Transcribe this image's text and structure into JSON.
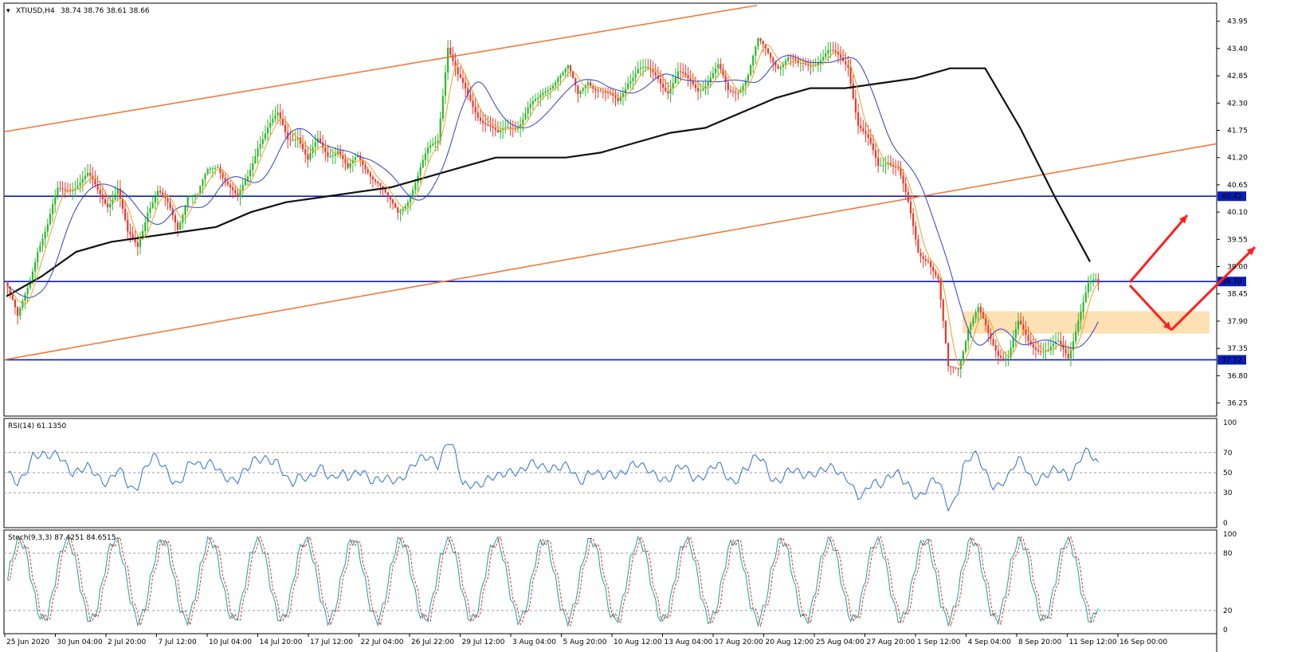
{
  "header": {
    "symbol": "XTIUSD,H4",
    "ohlc": "38.74 38.76 38.61 38.66"
  },
  "price_panel": {
    "ticks": [
      "43.95",
      "43.40",
      "42.85",
      "42.30",
      "41.75",
      "41.20",
      "40.65",
      "40.10",
      "39.55",
      "39.00",
      "38.45",
      "37.90",
      "37.35",
      "36.80",
      "36.25"
    ],
    "levels": [
      {
        "label": "40.42",
        "value": 40.42
      },
      {
        "label": "38.70",
        "value": 38.7
      },
      {
        "label": "37.12",
        "value": 37.12
      }
    ],
    "zone": {
      "from": 37.65,
      "to": 38.1
    },
    "colors": {
      "up": "#2db82d",
      "down": "#e8392e",
      "channel": "#f07a3c",
      "level": "#0a1fb8",
      "ma_long": "#111111",
      "ma_fast": "#2f3fc8",
      "ma_faster": "#f0a020",
      "arrow": "#ff2020",
      "zone": "#fde0b4"
    }
  },
  "rsi_panel": {
    "label": "RSI(14) 61.1350",
    "ticks": [
      "100",
      "70",
      "50",
      "30",
      "0"
    ],
    "color": "#2f6fd0"
  },
  "stoch_panel": {
    "label": "Stoch(9,3,3) 87.4251 84.6515",
    "ticks": [
      "100",
      "80",
      "20",
      "0"
    ],
    "main_color": "#1aa0a0",
    "signal_color": "#e03030"
  },
  "x_axis": {
    "labels": [
      "25 Jun 2020",
      "30 Jun 04:00",
      "2 Jul 20:00",
      "7 Jul 12:00",
      "10 Jul 04:00",
      "14 Jul 20:00",
      "17 Jul 12:00",
      "22 Jul 04:00",
      "26 Jul 22:00",
      "29 Jul 12:00",
      "3 Aug 04:00",
      "5 Aug 20:00",
      "10 Aug 12:00",
      "13 Aug 04:00",
      "17 Aug 20:00",
      "20 Aug 12:00",
      "25 Aug 04:00",
      "27 Aug 20:00",
      "1 Sep 12:00",
      "4 Sep 04:00",
      "8 Sep 20:00",
      "11 Sep 12:00",
      "16 Sep 00:00"
    ]
  },
  "chart_data": {
    "type": "candlestick",
    "symbol": "XTIUSD",
    "timeframe": "H4",
    "last_ohlc": {
      "open": 38.74,
      "high": 38.76,
      "low": 38.61,
      "close": 38.66
    },
    "x_labels": [
      "25 Jun 2020",
      "30 Jun 04:00",
      "2 Jul 20:00",
      "7 Jul 12:00",
      "10 Jul 04:00",
      "14 Jul 20:00",
      "17 Jul 12:00",
      "22 Jul 04:00",
      "26 Jul 22:00",
      "29 Jul 12:00",
      "3 Aug 04:00",
      "5 Aug 20:00",
      "10 Aug 12:00",
      "13 Aug 04:00",
      "17 Aug 20:00",
      "20 Aug 12:00",
      "25 Aug 04:00",
      "27 Aug 20:00",
      "1 Sep 12:00",
      "4 Sep 04:00",
      "8 Sep 20:00",
      "11 Sep 12:00",
      "16 Sep 00:00"
    ],
    "ylim": [
      36.05,
      44.25
    ],
    "close_path": [
      38.6,
      37.9,
      38.6,
      39.4,
      39.8,
      40.5,
      40.6,
      40.7,
      40.8,
      40.5,
      40.3,
      40.6,
      39.6,
      39.4,
      40.2,
      40.5,
      40.2,
      39.8,
      40.5,
      40.4,
      40.9,
      41.1,
      40.7,
      40.3,
      40.8,
      41.5,
      41.8,
      42.0,
      41.6,
      41.7,
      41.1,
      41.5,
      41.3,
      41.4,
      40.9,
      41.2,
      41.0,
      40.7,
      40.3,
      40.1,
      40.4,
      40.8,
      41.3,
      41.6,
      43.5,
      42.8,
      42.4,
      42.1,
      41.9,
      41.6,
      41.8,
      41.9,
      42.2,
      42.3,
      42.6,
      42.9,
      43.0,
      42.4,
      42.8,
      42.6,
      42.4,
      42.3,
      42.8,
      43.0,
      42.9,
      42.8,
      42.6,
      42.9,
      42.7,
      42.6,
      42.8,
      43.0,
      42.5,
      42.6,
      42.9,
      43.5,
      43.3,
      43.1,
      43.2,
      43.0,
      43.1,
      43.2,
      43.3,
      43.2,
      43.1,
      41.9,
      41.5,
      41.0,
      41.2,
      41.0,
      40.2,
      39.3,
      39.2,
      38.7,
      36.9,
      37.0,
      37.8,
      38.1,
      37.6,
      37.3,
      37.2,
      37.8,
      37.5,
      37.4,
      37.3,
      37.4,
      37.2,
      38.0,
      38.6,
      38.66
    ],
    "ma_long": [
      38.4,
      38.8,
      39.3,
      39.5,
      39.6,
      39.7,
      39.8,
      40.1,
      40.3,
      40.4,
      40.5,
      40.6,
      40.8,
      41.0,
      41.2,
      41.2,
      41.2,
      41.3,
      41.5,
      41.7,
      41.8,
      42.1,
      42.4,
      42.6,
      42.6,
      42.7,
      42.8,
      43.0,
      43.0,
      41.8,
      40.4,
      39.1
    ],
    "horizontal_levels": [
      40.42,
      38.7,
      37.12
    ],
    "support_zone": [
      37.65,
      38.1
    ],
    "rsi": {
      "name": "RSI(14)",
      "last": 61.135,
      "levels": [
        70,
        50,
        30
      ],
      "ylim": [
        0,
        100
      ]
    },
    "stochastic": {
      "name": "Stoch(9,3,3)",
      "main": 87.4251,
      "signal": 84.6515,
      "levels": [
        80,
        20
      ],
      "ylim": [
        0,
        100
      ]
    }
  }
}
